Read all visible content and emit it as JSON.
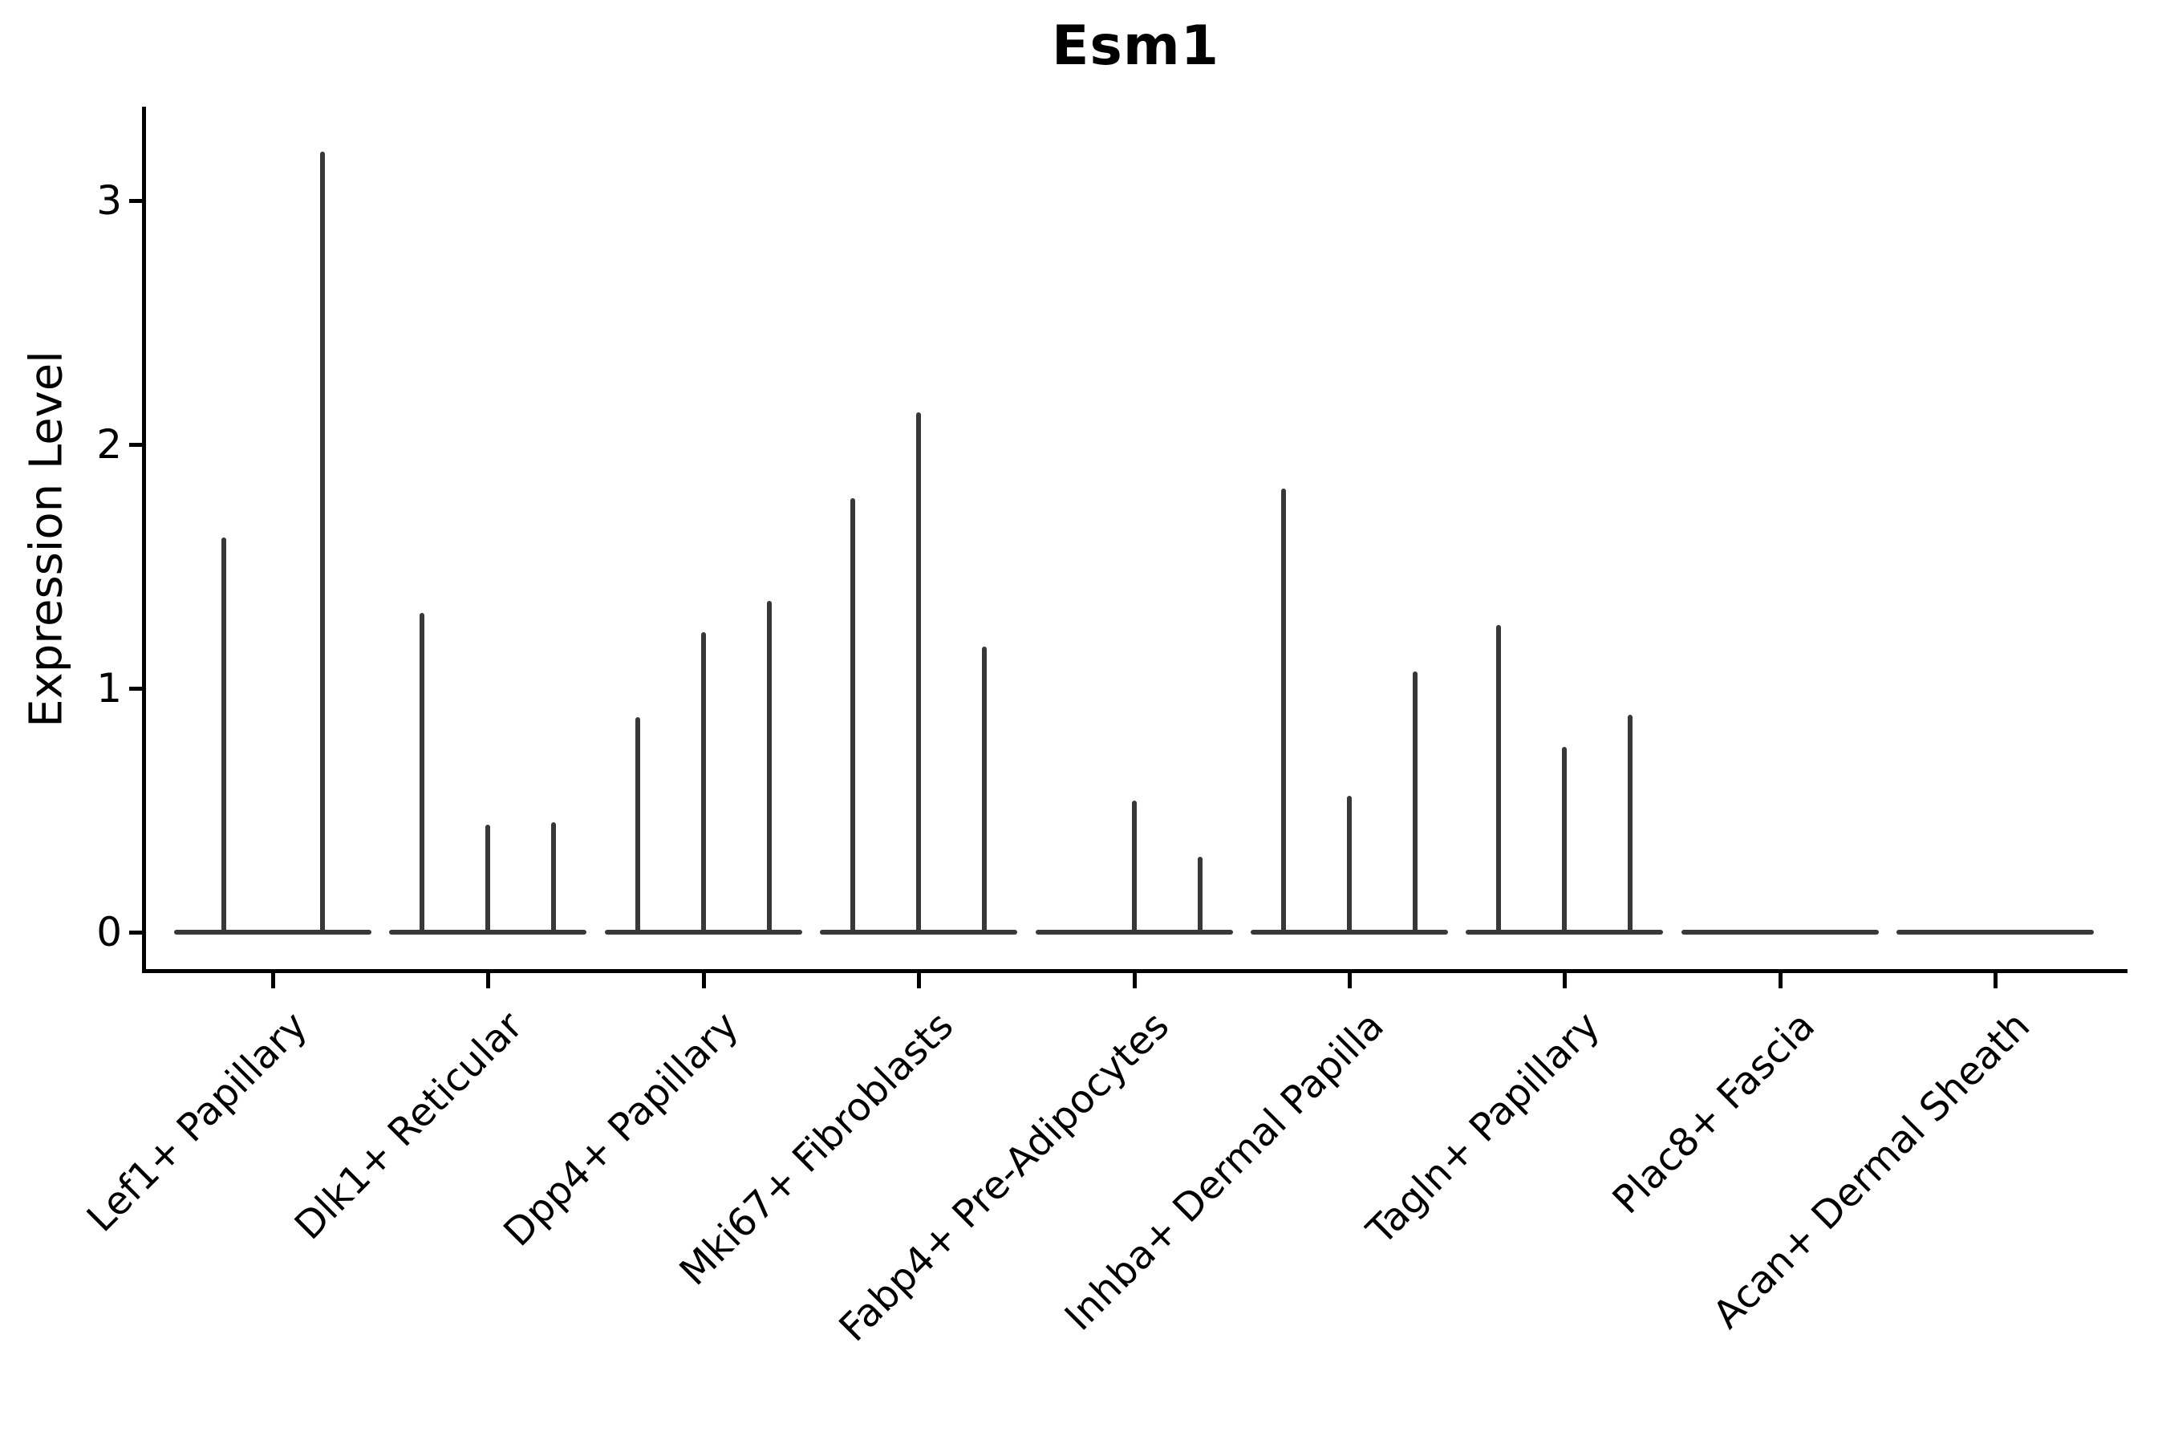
{
  "chart_data": {
    "type": "violin",
    "title": "Esm1",
    "ylabel": "Expression Level",
    "xlabel": "",
    "yticks": [
      0,
      1,
      2,
      3
    ],
    "ylim": [
      0,
      3.39
    ],
    "grid": false,
    "legend": null,
    "categories": [
      "Lef1+ Papillary",
      "Dlk1+ Reticular",
      "Dpp4+ Papillary",
      "Mki67+ Fibroblasts",
      "Fabp4+ Pre-Adipocytes",
      "Inhba+ Dermal Papilla",
      "Tagln+ Papillary",
      "Plac8+ Fascia",
      "Acan+ Dermal Sheath"
    ],
    "description": "Violin plot of Esm1 expression level per cell type. Each category shows dodged violins that are almost entirely collapsed to a wide flat base at expression 0, with a thin vertical spike rising to each violin's maximum expression value; categories with no expressing cells are flat lines at 0.",
    "groups": [
      {
        "category": "Lef1+ Papillary",
        "slots": 2,
        "spikes": [
          {
            "slot": 1,
            "max": 1.62
          },
          {
            "slot": 2,
            "max": 3.2
          }
        ]
      },
      {
        "category": "Dlk1+ Reticular",
        "slots": 3,
        "spikes": [
          {
            "slot": 1,
            "max": 1.31
          },
          {
            "slot": 2,
            "max": 0.44
          },
          {
            "slot": 3,
            "max": 0.45
          }
        ]
      },
      {
        "category": "Dpp4+ Papillary",
        "slots": 3,
        "spikes": [
          {
            "slot": 1,
            "max": 0.88
          },
          {
            "slot": 2,
            "max": 1.23
          },
          {
            "slot": 3,
            "max": 1.36
          }
        ]
      },
      {
        "category": "Mki67+ Fibroblasts",
        "slots": 3,
        "spikes": [
          {
            "slot": 1,
            "max": 1.78
          },
          {
            "slot": 2,
            "max": 2.13
          },
          {
            "slot": 3,
            "max": 1.17
          }
        ]
      },
      {
        "category": "Fabp4+ Pre-Adipocytes",
        "slots": 3,
        "spikes": [
          {
            "slot": 2,
            "max": 0.54
          },
          {
            "slot": 3,
            "max": 0.31
          }
        ]
      },
      {
        "category": "Inhba+ Dermal Papilla",
        "slots": 3,
        "spikes": [
          {
            "slot": 1,
            "max": 1.82
          },
          {
            "slot": 2,
            "max": 0.56
          },
          {
            "slot": 3,
            "max": 1.07
          }
        ]
      },
      {
        "category": "Tagln+ Papillary",
        "slots": 3,
        "spikes": [
          {
            "slot": 1,
            "max": 1.26
          },
          {
            "slot": 2,
            "max": 0.76
          },
          {
            "slot": 3,
            "max": 0.89
          }
        ]
      },
      {
        "category": "Plac8+ Fascia",
        "slots": 3,
        "spikes": []
      },
      {
        "category": "Acan+ Dermal Sheath",
        "slots": 3,
        "spikes": []
      }
    ]
  },
  "colors": {
    "violin": "#383838",
    "axis": "#000000",
    "text": "#000000",
    "background": "#ffffff"
  }
}
